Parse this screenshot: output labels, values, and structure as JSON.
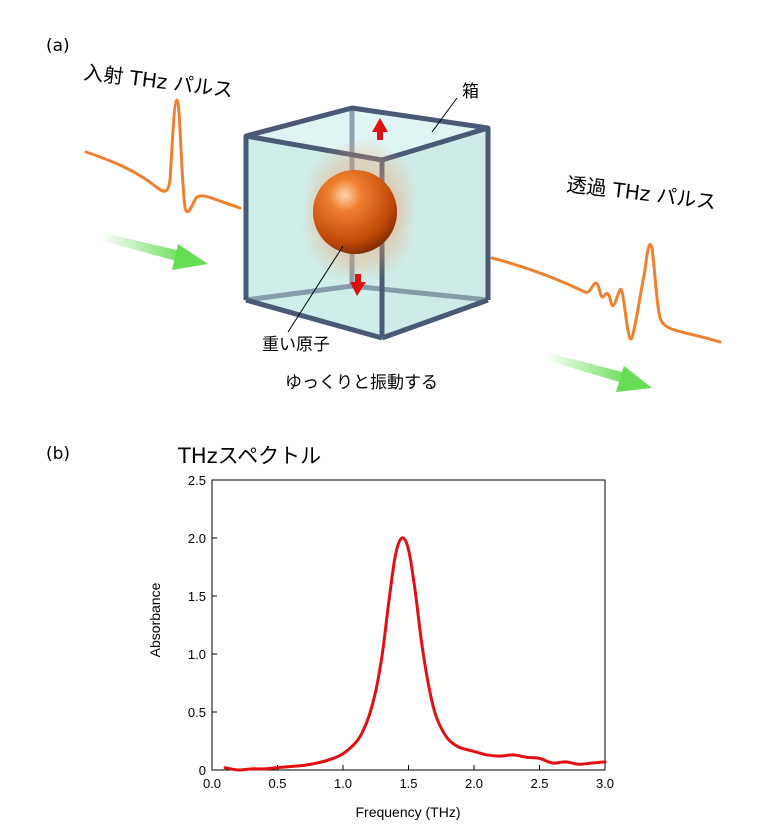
{
  "panel_a": {
    "label": "(a)",
    "incident_pulse": "入射 THz パルス",
    "transmitted_pulse": "透過 THz パルス",
    "box": "箱",
    "heavy_atom": "重い原子",
    "vibration": "ゆっくりと振動する"
  },
  "panel_b": {
    "label": "(b)",
    "title": "THzスペクトル"
  },
  "colors": {
    "pulse": "#f08030",
    "arrow": "#66dd55",
    "cube_edge": "#4a5a75",
    "cube_fill": "#a8e0d8",
    "atom": "#d05a10",
    "motion_arrow": "#e01010",
    "curve": "#e01010"
  },
  "icons": [
    "cube-box-icon",
    "heavy-atom-sphere-icon",
    "green-arrow-icon",
    "red-arrow-icon"
  ],
  "chart_data": {
    "type": "line",
    "title": "THzスペクトル",
    "xlabel": "Frequency (THz)",
    "ylabel": "Absorbance",
    "xlim": [
      0.0,
      3.0
    ],
    "ylim": [
      0,
      2.5
    ],
    "xticks": [
      "0.0",
      "0.5",
      "1.0",
      "1.5",
      "2.0",
      "2.5",
      "3.0"
    ],
    "yticks": [
      "0",
      "0.5",
      "1.0",
      "1.5",
      "2.0",
      "2.5"
    ],
    "grid": false,
    "series": [
      {
        "x": [
          0.1,
          0.2,
          0.3,
          0.4,
          0.5,
          0.6,
          0.7,
          0.8,
          0.9,
          1.0,
          1.1,
          1.15,
          1.2,
          1.25,
          1.3,
          1.35,
          1.4,
          1.45,
          1.5,
          1.55,
          1.6,
          1.65,
          1.7,
          1.75,
          1.8,
          1.85,
          1.9,
          2.0,
          2.1,
          2.2,
          2.3,
          2.4,
          2.5,
          2.6,
          2.7,
          2.8,
          2.9,
          3.0
        ],
        "y": [
          0.02,
          0.0,
          0.01,
          0.01,
          0.02,
          0.03,
          0.04,
          0.06,
          0.09,
          0.14,
          0.24,
          0.33,
          0.47,
          0.68,
          1.0,
          1.45,
          1.85,
          2.0,
          1.9,
          1.55,
          1.1,
          0.75,
          0.5,
          0.36,
          0.27,
          0.22,
          0.19,
          0.16,
          0.13,
          0.12,
          0.13,
          0.11,
          0.1,
          0.06,
          0.07,
          0.05,
          0.06,
          0.07
        ]
      }
    ]
  }
}
